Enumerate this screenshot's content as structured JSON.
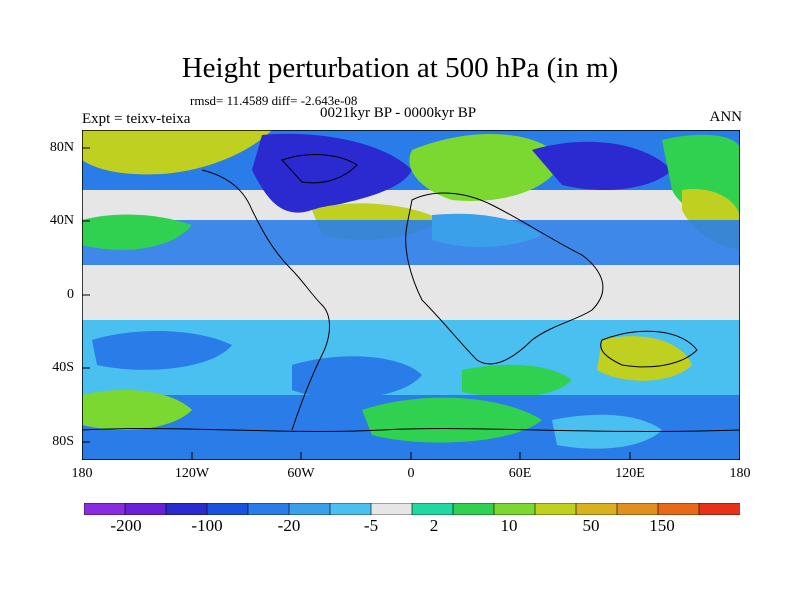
{
  "title": "Height perturbation at 500 hPa (in m)",
  "stats_line": "rmsd= 11.4589 diff= -2.643e-08",
  "experiment": "Expt = teixv-teixa",
  "period": "0021kyr BP - 0000kyr BP",
  "season": "ANN",
  "lat_labels": [
    "80N",
    "40N",
    "0",
    "40S",
    "80S"
  ],
  "lon_labels": [
    "180",
    "120W",
    "60W",
    "0",
    "60E",
    "120E",
    "180"
  ],
  "colorbar": {
    "labels": [
      "-200",
      "-100",
      "-20",
      "-5",
      "2",
      "10",
      "50",
      "150"
    ],
    "colors": [
      "#8a2be2",
      "#6a1fd8",
      "#2a2ad0",
      "#1a52e0",
      "#2a7de8",
      "#3aa0ea",
      "#4ac0f0",
      "#e6e6e6",
      "#20d8a0",
      "#30d050",
      "#7ad830",
      "#c0d020",
      "#d8b020",
      "#e09020",
      "#e86a18",
      "#e83018"
    ]
  },
  "colors": {
    "land_neutral": "#e6e6e6",
    "coast": "#000000"
  }
}
